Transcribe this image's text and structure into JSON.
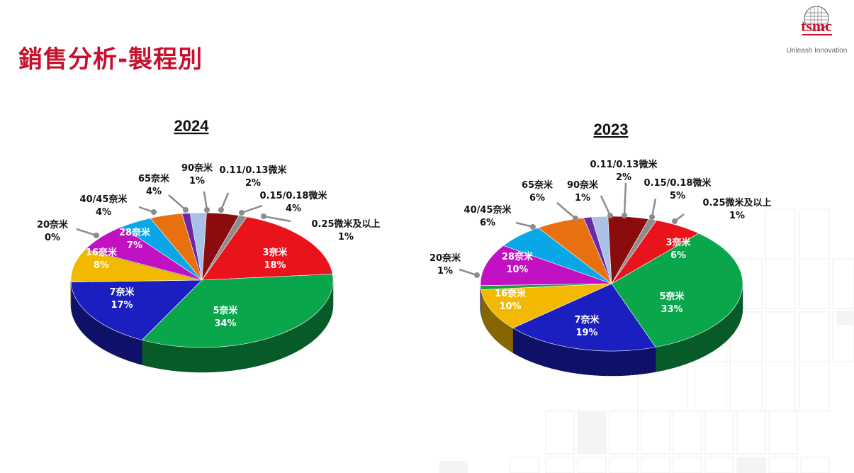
{
  "header": {
    "title": "銷售分析-製程別",
    "logo_text": "tsmc",
    "tagline": "Unleash Innovation"
  },
  "chart_data": [
    {
      "type": "pie",
      "title": "2024",
      "slices": [
        {
          "label": "3奈米",
          "value": 18,
          "pct": "18%",
          "color": "#e8131b"
        },
        {
          "label": "5奈米",
          "value": 34,
          "pct": "34%",
          "color": "#0aa64b"
        },
        {
          "label": "7奈米",
          "value": 17,
          "pct": "17%",
          "color": "#1b1fbf"
        },
        {
          "label": "16奈米",
          "value": 8,
          "pct": "8%",
          "color": "#f2b900"
        },
        {
          "label": "20奈米",
          "value": 0,
          "pct": "0%",
          "color": "#19a33c"
        },
        {
          "label": "28奈米",
          "value": 7,
          "pct": "7%",
          "color": "#c211c2"
        },
        {
          "label": "40/45奈米",
          "value": 4,
          "pct": "4%",
          "color": "#0aa7e6"
        },
        {
          "label": "65奈米",
          "value": 4,
          "pct": "4%",
          "color": "#e8700e"
        },
        {
          "label": "90奈米",
          "value": 1,
          "pct": "1%",
          "color": "#6a2aa6"
        },
        {
          "label": "0.11/0.13微米",
          "value": 2,
          "pct": "2%",
          "color": "#a9c1e6"
        },
        {
          "label": "0.15/0.18微米",
          "value": 4,
          "pct": "4%",
          "color": "#8a0c0c"
        },
        {
          "label": "0.25微米及以上",
          "value": 1,
          "pct": "1%",
          "color": "#8c8c8c"
        }
      ]
    },
    {
      "type": "pie",
      "title": "2023",
      "slices": [
        {
          "label": "3奈米",
          "value": 6,
          "pct": "6%",
          "color": "#e8131b"
        },
        {
          "label": "5奈米",
          "value": 33,
          "pct": "33%",
          "color": "#0aa64b"
        },
        {
          "label": "7奈米",
          "value": 19,
          "pct": "19%",
          "color": "#1b1fbf"
        },
        {
          "label": "16奈米",
          "value": 10,
          "pct": "10%",
          "color": "#f2b900"
        },
        {
          "label": "20奈米",
          "value": 1,
          "pct": "1%",
          "color": "#19a33c"
        },
        {
          "label": "28奈米",
          "value": 10,
          "pct": "10%",
          "color": "#c211c2"
        },
        {
          "label": "40/45奈米",
          "value": 6,
          "pct": "6%",
          "color": "#0aa7e6"
        },
        {
          "label": "65奈米",
          "value": 6,
          "pct": "6%",
          "color": "#e8700e"
        },
        {
          "label": "90奈米",
          "value": 1,
          "pct": "1%",
          "color": "#6a2aa6"
        },
        {
          "label": "0.11/0.13微米",
          "value": 2,
          "pct": "2%",
          "color": "#a9c1e6"
        },
        {
          "label": "0.15/0.18微米",
          "value": 5,
          "pct": "5%",
          "color": "#8a0c0c"
        },
        {
          "label": "0.25微米及以上",
          "value": 1,
          "pct": "1%",
          "color": "#8c8c8c"
        }
      ]
    }
  ]
}
